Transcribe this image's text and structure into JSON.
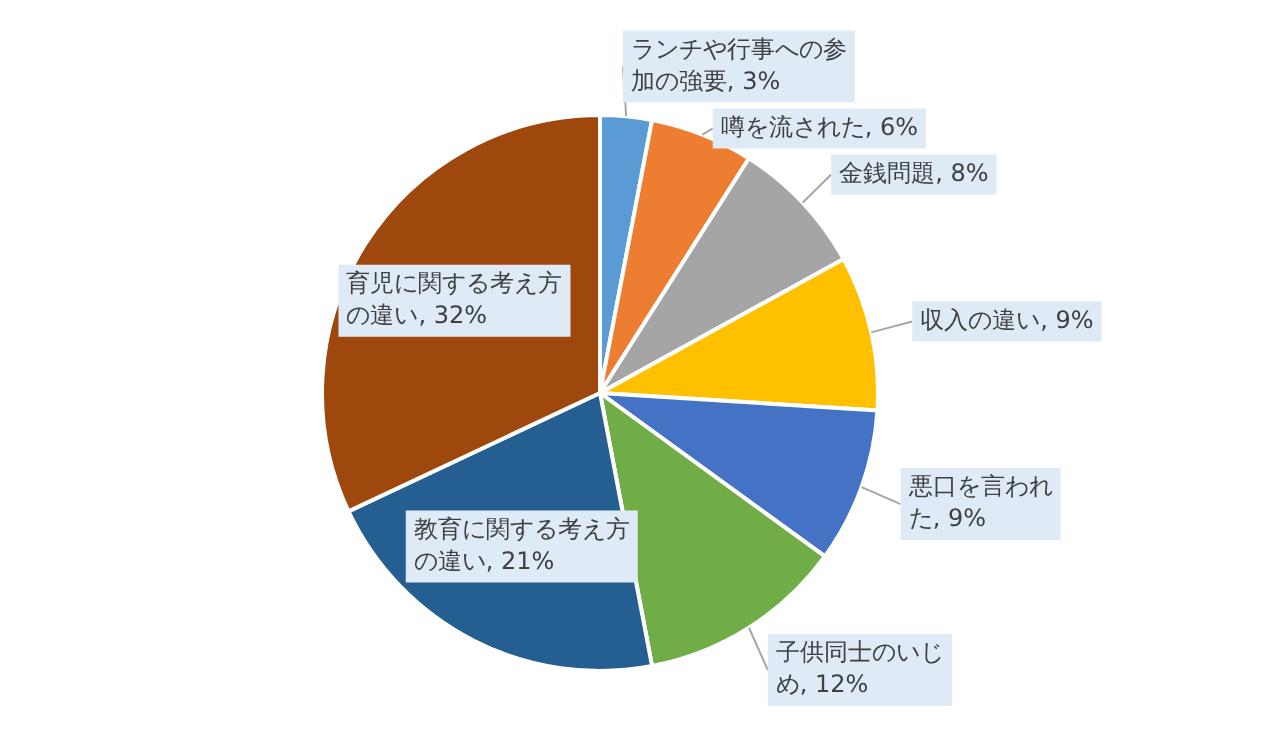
{
  "chart_data": {
    "type": "pie",
    "categories": [
      "ランチや行事への参加の強要",
      "噂を流された",
      "金銭問題",
      "収入の違い",
      "悪口を言われた",
      "子供同士のいじめ",
      "教育に関する考え方の違い",
      "育児に関する考え方の違い"
    ],
    "values": [
      3,
      6,
      8,
      9,
      9,
      12,
      21,
      32
    ],
    "colors": [
      "#5b9bd5",
      "#ed7d31",
      "#a5a5a5",
      "#ffc000",
      "#4472c4",
      "#70ad47",
      "#255e91",
      "#9e480e"
    ],
    "value_labels": [
      "3%",
      "6%",
      "8%",
      "9%",
      "9%",
      "12%",
      "21%",
      "32%"
    ],
    "legend": false
  }
}
